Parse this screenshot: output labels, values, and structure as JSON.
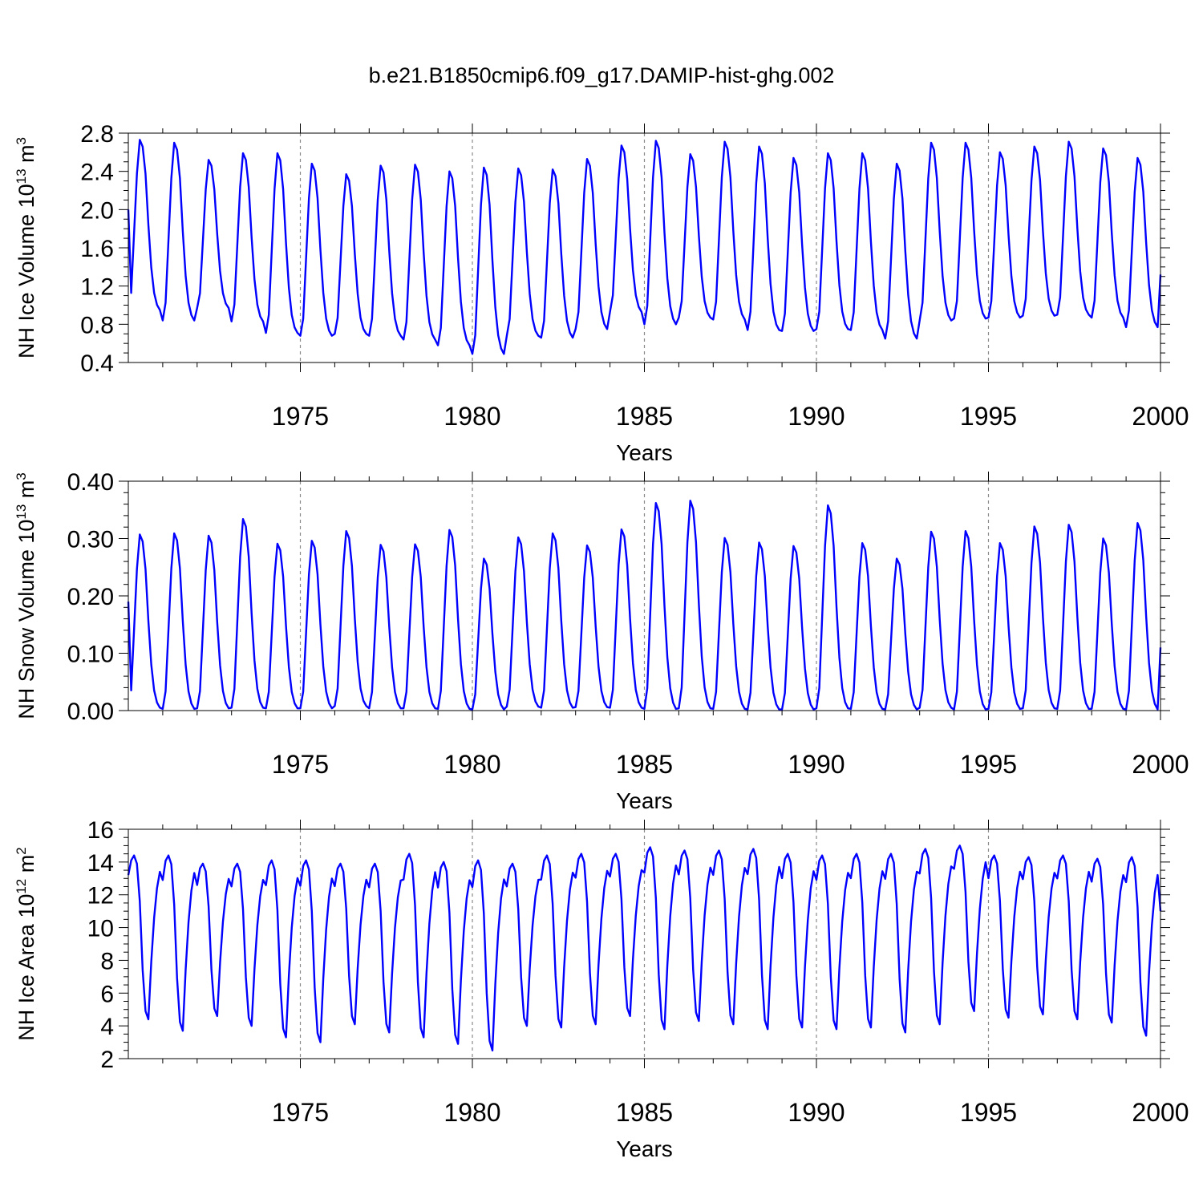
{
  "title": "b.e21.B1850cmip6.f09_g17.DAMIP-hist-ghg.002",
  "colors": {
    "series": "#0000ff",
    "grid": "#8a8a8a",
    "axis": "#000000"
  },
  "chart_data": [
    {
      "type": "line",
      "ylabel": "NH Ice Volume 10",
      "ylabel_sup": "13",
      "ylabel_unit": " m",
      "ylabel_unit_sup": "3",
      "xlabel": "Years",
      "xlim": [
        1970,
        2000
      ],
      "ylim": [
        0.4,
        2.8
      ],
      "yticks": [
        0.4,
        0.8,
        1.2,
        1.6,
        2.0,
        2.4,
        2.8
      ],
      "ytick_labels": [
        "0.4",
        "0.8",
        "1.2",
        "1.6",
        "2.0",
        "2.4",
        "2.8"
      ],
      "yminor_step": 0.1,
      "xticks": [
        1975,
        1980,
        1985,
        1990,
        1995,
        2000
      ],
      "xtick_labels": [
        "1975",
        "1980",
        "1985",
        "1990",
        "1995",
        "2000"
      ],
      "seasonal_shape": [
        0,
        0.1,
        0.45,
        0.8,
        1.0,
        0.96,
        0.8,
        0.5,
        0.25,
        0.1,
        0.03,
        0
      ],
      "start_value": 2.0,
      "end_value": 1.32,
      "annual_max": [
        2.73,
        2.7,
        2.52,
        2.59,
        2.59,
        2.48,
        2.37,
        2.46,
        2.47,
        2.4,
        2.44,
        2.43,
        2.42,
        2.53,
        2.67,
        2.72,
        2.58,
        2.71,
        2.66,
        2.54,
        2.59,
        2.59,
        2.48,
        2.7,
        2.7,
        2.6,
        2.66,
        2.71,
        2.64,
        2.54
      ],
      "annual_min": [
        0.95,
        0.84,
        0.97,
        0.83,
        0.71,
        0.68,
        0.7,
        0.68,
        0.64,
        0.58,
        0.49,
        0.68,
        0.66,
        0.75,
        0.93,
        0.8,
        0.87,
        0.85,
        0.74,
        0.73,
        0.75,
        0.74,
        0.65,
        0.84,
        0.86,
        0.87,
        0.89,
        0.9,
        0.87,
        0.77
      ]
    },
    {
      "type": "line",
      "ylabel": "NH Snow Volume 10",
      "ylabel_sup": "13",
      "ylabel_unit": " m",
      "ylabel_unit_sup": "3",
      "xlabel": "Years",
      "xlim": [
        1970,
        2000
      ],
      "ylim": [
        0.0,
        0.4
      ],
      "yticks": [
        0.0,
        0.1,
        0.2,
        0.3,
        0.4
      ],
      "ytick_labels": [
        "0.00",
        "0.10",
        "0.20",
        "0.30",
        "0.40"
      ],
      "yminor_step": 0.02,
      "xticks": [
        1975,
        1980,
        1985,
        1990,
        1995,
        2000
      ],
      "xtick_labels": [
        "1975",
        "1980",
        "1985",
        "1990",
        "1995",
        "2000"
      ],
      "seasonal_shape": [
        0,
        0.1,
        0.45,
        0.8,
        1.0,
        0.96,
        0.8,
        0.5,
        0.25,
        0.1,
        0.03,
        0
      ],
      "start_value": 0.19,
      "end_value": 0.11,
      "annual_max": [
        0.307,
        0.309,
        0.305,
        0.334,
        0.291,
        0.296,
        0.313,
        0.289,
        0.29,
        0.315,
        0.265,
        0.302,
        0.309,
        0.288,
        0.316,
        0.362,
        0.366,
        0.301,
        0.293,
        0.287,
        0.358,
        0.292,
        0.265,
        0.312,
        0.313,
        0.292,
        0.321,
        0.324,
        0.3,
        0.327
      ],
      "annual_min": [
        0.005,
        0.003,
        0.004,
        0.005,
        0.004,
        0.004,
        0.008,
        0.004,
        0.004,
        0.003,
        0.002,
        0.007,
        0.005,
        0.006,
        0.005,
        0.003,
        0.004,
        0.003,
        0.002,
        0.002,
        0.004,
        0.003,
        0.002,
        0.005,
        0.002,
        0.003,
        0.004,
        0.003,
        0.003,
        0.002
      ]
    },
    {
      "type": "line",
      "ylabel": "NH Ice Area 10",
      "ylabel_sup": "12",
      "ylabel_unit": " m",
      "ylabel_unit_sup": "2",
      "xlabel": "Years",
      "xlim": [
        1970,
        2000
      ],
      "ylim": [
        2,
        16
      ],
      "yticks": [
        2,
        4,
        6,
        8,
        10,
        12,
        14,
        16
      ],
      "ytick_labels": [
        "2",
        "4",
        "6",
        "8",
        "10",
        "12",
        "14",
        "16"
      ],
      "yminor_step": 0.5,
      "xticks": [
        1975,
        1980,
        1985,
        1990,
        1995,
        2000
      ],
      "xtick_labels": [
        "1975",
        "1980",
        "1985",
        "1990",
        "1995",
        "2000"
      ],
      "seasonal_shape": [
        0.86,
        0.97,
        1.0,
        0.95,
        0.72,
        0.3,
        0.05,
        0,
        0.35,
        0.62,
        0.8,
        0.9
      ],
      "start_value": 13.2,
      "end_value": 11.0,
      "annual_max": [
        14.4,
        14.4,
        13.9,
        13.9,
        14.1,
        14.1,
        13.9,
        13.9,
        14.5,
        14.0,
        14.1,
        13.9,
        14.4,
        14.5,
        14.5,
        14.9,
        14.7,
        14.7,
        14.8,
        14.5,
        14.4,
        14.5,
        14.5,
        14.8,
        15.0,
        14.4,
        14.3,
        14.4,
        14.2,
        14.3
      ],
      "annual_min": [
        4.4,
        3.7,
        4.6,
        4.0,
        3.3,
        3.0,
        4.1,
        3.6,
        3.3,
        2.9,
        2.5,
        4.0,
        3.9,
        4.1,
        4.6,
        3.8,
        4.3,
        4.1,
        3.8,
        3.9,
        3.8,
        3.9,
        3.6,
        4.1,
        4.9,
        4.5,
        4.7,
        4.4,
        4.2,
        3.4
      ]
    }
  ]
}
